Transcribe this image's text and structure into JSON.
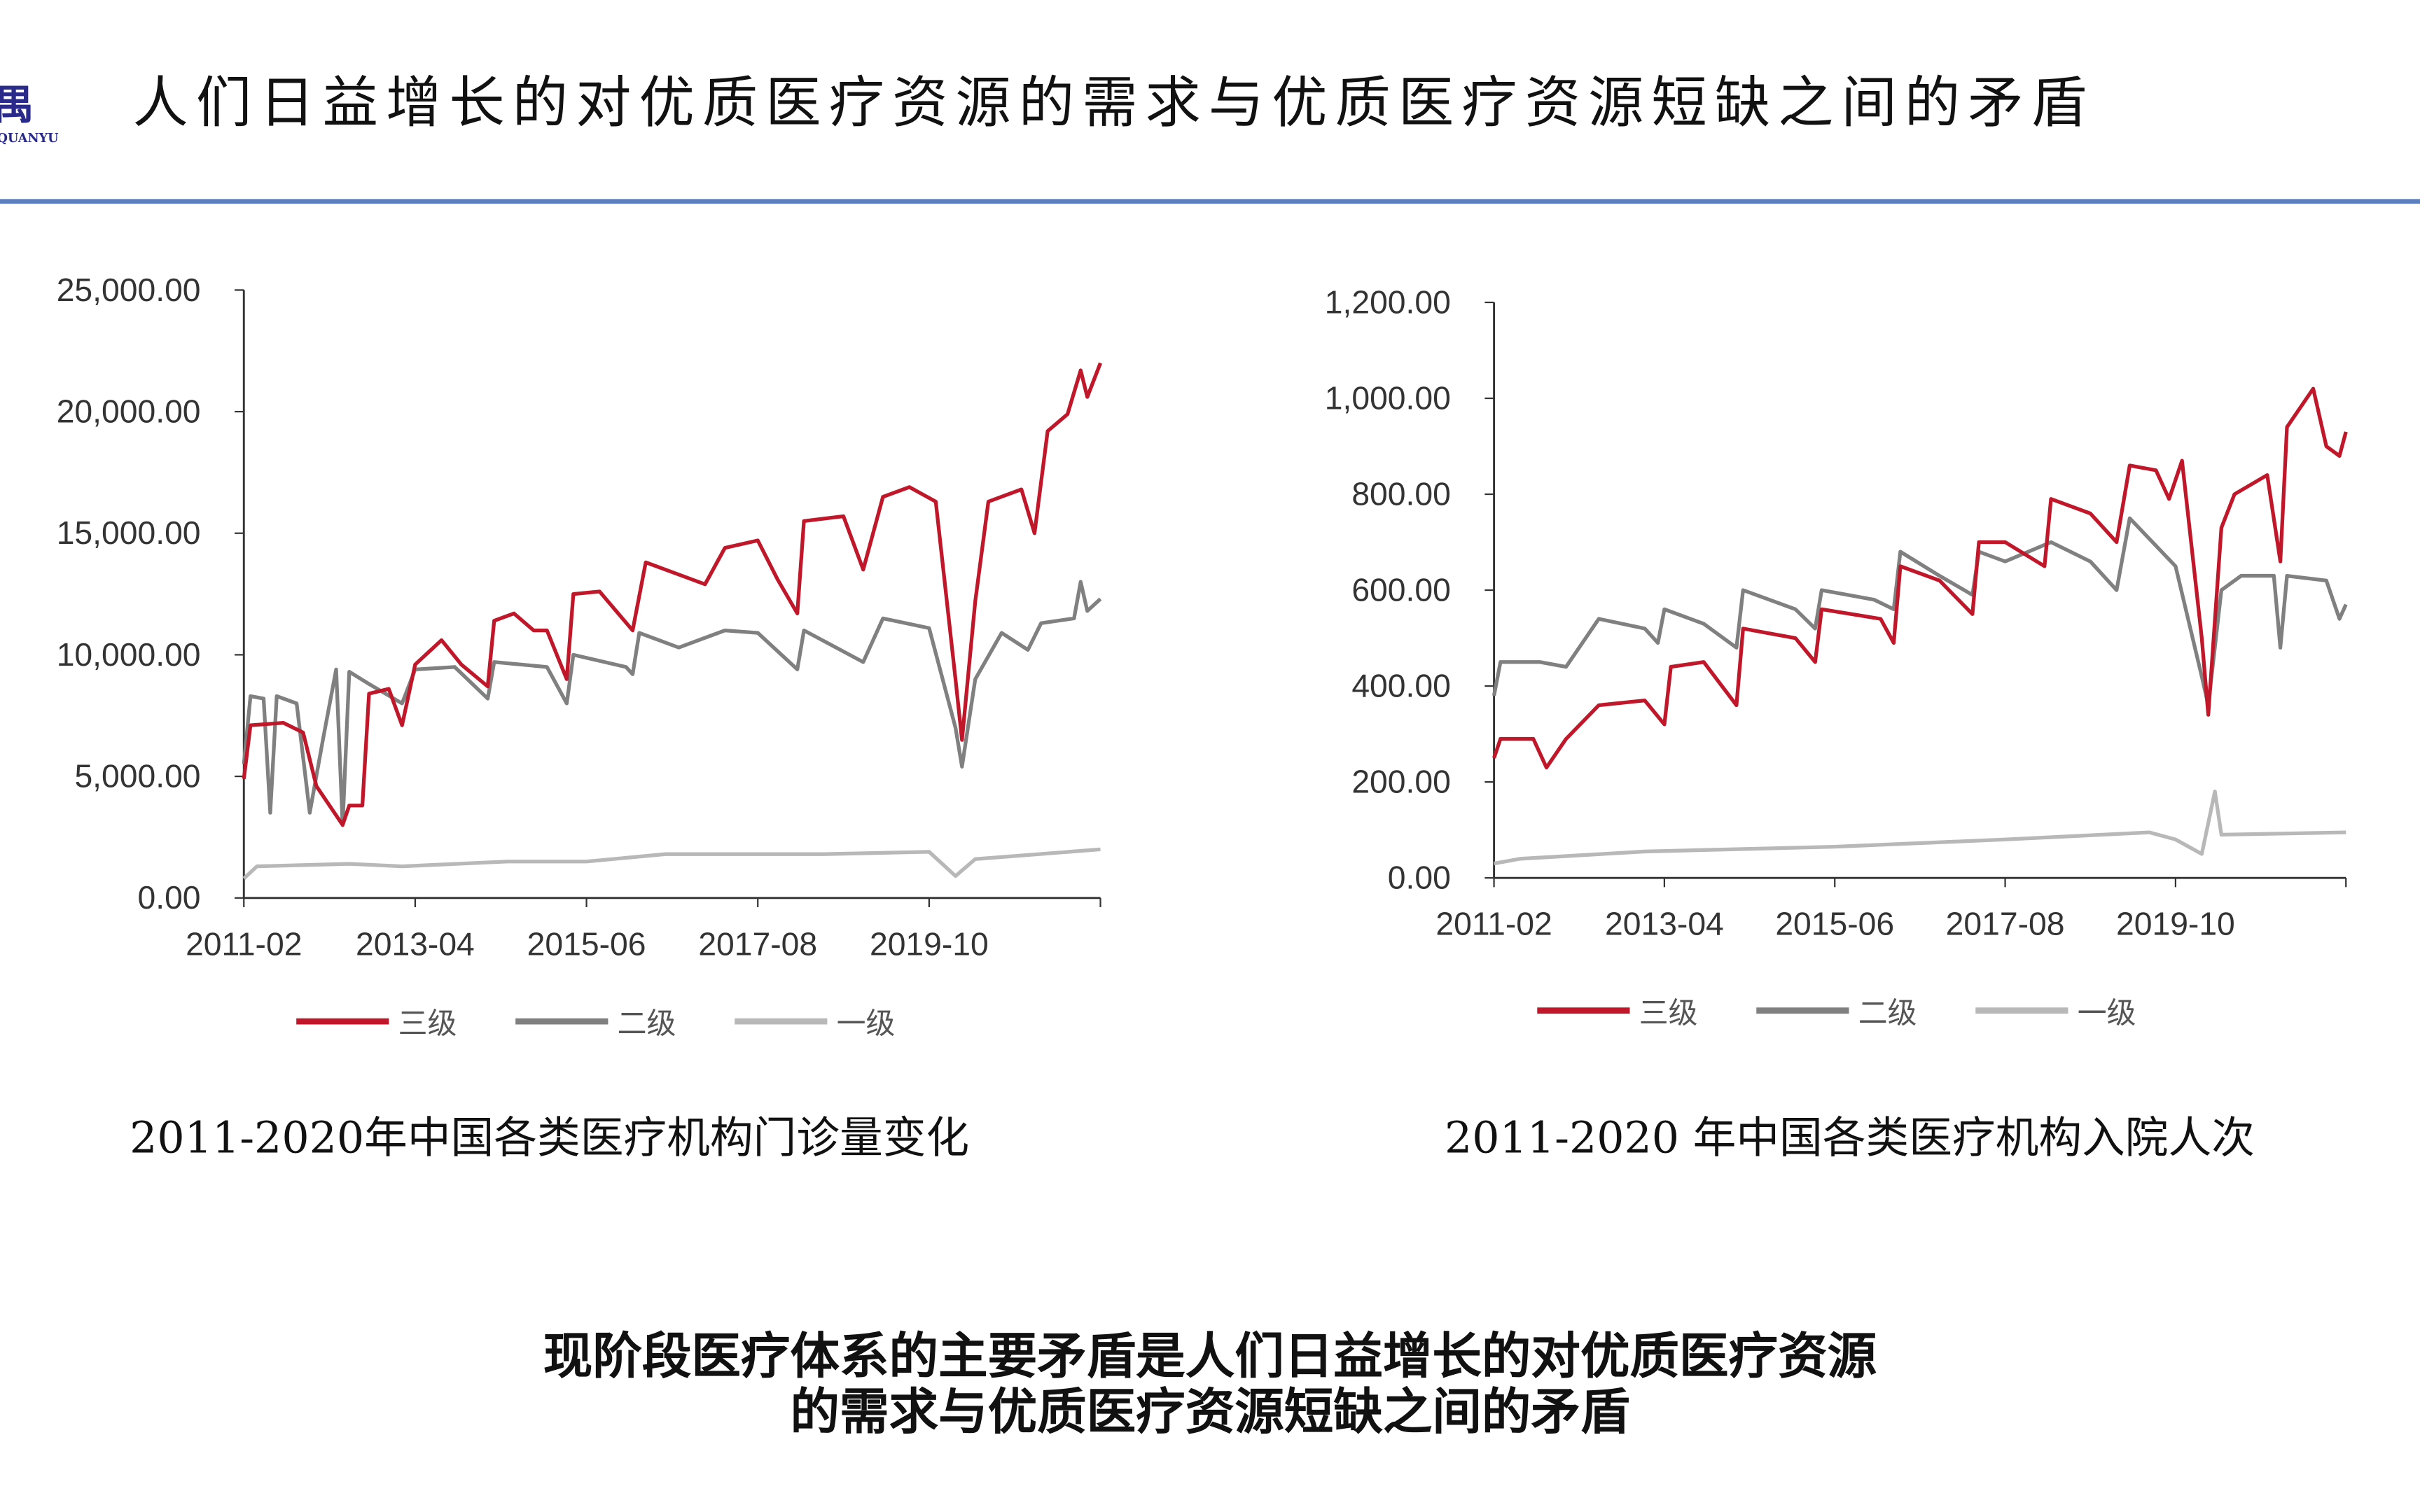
{
  "header": {
    "logo_text": "禺",
    "logo_sub": "QUANYU",
    "title": "人们日益增长的对优质医疗资源的需求与优质医疗资源短缺之间的矛盾",
    "rule_color": "#5b7fc0"
  },
  "captions": {
    "left": "2011-2020年中国各类医疗机构门诊量变化",
    "right": "2011-2020 年中国各类医疗机构入院人次"
  },
  "subtitle": {
    "line1": "现阶段医疗体系的主要矛盾是人们日益增长的对优质医疗资源",
    "line2": "的需求与优质医疗资源短缺之间的矛盾"
  },
  "chart_data": [
    {
      "type": "line",
      "xlim": [
        "2011-02",
        "2021-12"
      ],
      "ylim": [
        0,
        25000
      ],
      "xticks": [
        "2011-02",
        "2013-04",
        "2015-06",
        "2017-08",
        "2019-10"
      ],
      "yticks": [
        "0.00",
        "5,000.00",
        "10,000.00",
        "15,000.00",
        "20,000.00",
        "25,000.00"
      ],
      "legend": "bottom",
      "series": [
        {
          "name": "三级",
          "color": "#c0182a",
          "points": [
            [
              "2011-02",
              4900
            ],
            [
              "2011-03",
              7100
            ],
            [
              "2011-08",
              7200
            ],
            [
              "2011-11",
              6800
            ],
            [
              "2012-01",
              4600
            ],
            [
              "2012-05",
              3000
            ],
            [
              "2012-06",
              3800
            ],
            [
              "2012-08",
              3800
            ],
            [
              "2012-09",
              8400
            ],
            [
              "2012-12",
              8600
            ],
            [
              "2013-02",
              7100
            ],
            [
              "2013-04",
              9600
            ],
            [
              "2013-08",
              10600
            ],
            [
              "2013-11",
              9600
            ],
            [
              "2014-03",
              8700
            ],
            [
              "2014-04",
              11400
            ],
            [
              "2014-07",
              11700
            ],
            [
              "2014-10",
              11000
            ],
            [
              "2014-12",
              11000
            ],
            [
              "2015-03",
              9000
            ],
            [
              "2015-04",
              12500
            ],
            [
              "2015-08",
              12600
            ],
            [
              "2016-01",
              11000
            ],
            [
              "2016-03",
              13800
            ],
            [
              "2016-08",
              13300
            ],
            [
              "2016-12",
              12900
            ],
            [
              "2017-03",
              14400
            ],
            [
              "2017-08",
              14700
            ],
            [
              "2017-11",
              13100
            ],
            [
              "2018-02",
              11700
            ],
            [
              "2018-03",
              15500
            ],
            [
              "2018-09",
              15700
            ],
            [
              "2018-12",
              13500
            ],
            [
              "2019-03",
              16500
            ],
            [
              "2019-07",
              16900
            ],
            [
              "2019-11",
              16300
            ],
            [
              "2020-02",
              9000
            ],
            [
              "2020-03",
              6500
            ],
            [
              "2020-05",
              12200
            ],
            [
              "2020-07",
              16300
            ],
            [
              "2020-12",
              16800
            ],
            [
              "2021-02",
              15000
            ],
            [
              "2021-04",
              19200
            ],
            [
              "2021-07",
              19900
            ],
            [
              "2021-09",
              21700
            ],
            [
              "2021-10",
              20600
            ],
            [
              "2021-12",
              22000
            ]
          ]
        },
        {
          "name": "二级",
          "color": "#808080",
          "points": [
            [
              "2011-02",
              5500
            ],
            [
              "2011-03",
              8300
            ],
            [
              "2011-05",
              8200
            ],
            [
              "2011-06",
              3500
            ],
            [
              "2011-07",
              8300
            ],
            [
              "2011-10",
              8000
            ],
            [
              "2011-12",
              3500
            ],
            [
              "2012-02",
              6500
            ],
            [
              "2012-04",
              9400
            ],
            [
              "2012-05",
              3000
            ],
            [
              "2012-06",
              9300
            ],
            [
              "2012-09",
              8800
            ],
            [
              "2013-02",
              8000
            ],
            [
              "2013-04",
              9400
            ],
            [
              "2013-10",
              9500
            ],
            [
              "2014-03",
              8200
            ],
            [
              "2014-04",
              9700
            ],
            [
              "2014-12",
              9500
            ],
            [
              "2015-03",
              8000
            ],
            [
              "2015-04",
              10000
            ],
            [
              "2015-12",
              9500
            ],
            [
              "2016-01",
              9200
            ],
            [
              "2016-02",
              10900
            ],
            [
              "2016-08",
              10300
            ],
            [
              "2017-03",
              11000
            ],
            [
              "2017-08",
              10900
            ],
            [
              "2018-02",
              9400
            ],
            [
              "2018-03",
              11000
            ],
            [
              "2018-12",
              9700
            ],
            [
              "2019-03",
              11500
            ],
            [
              "2019-10",
              11100
            ],
            [
              "2020-02",
              7000
            ],
            [
              "2020-03",
              5400
            ],
            [
              "2020-05",
              9000
            ],
            [
              "2020-09",
              10900
            ],
            [
              "2021-01",
              10200
            ],
            [
              "2021-03",
              11300
            ],
            [
              "2021-08",
              11500
            ],
            [
              "2021-09",
              13000
            ],
            [
              "2021-10",
              11800
            ],
            [
              "2021-12",
              12300
            ]
          ]
        },
        {
          "name": "一级",
          "color": "#b8b8b8",
          "points": [
            [
              "2011-02",
              800
            ],
            [
              "2011-04",
              1300
            ],
            [
              "2012-06",
              1400
            ],
            [
              "2013-02",
              1300
            ],
            [
              "2014-06",
              1500
            ],
            [
              "2015-06",
              1500
            ],
            [
              "2016-06",
              1800
            ],
            [
              "2017-08",
              1800
            ],
            [
              "2018-06",
              1800
            ],
            [
              "2019-10",
              1900
            ],
            [
              "2020-02",
              900
            ],
            [
              "2020-05",
              1600
            ],
            [
              "2021-12",
              2000
            ]
          ]
        }
      ]
    },
    {
      "type": "line",
      "xlim": [
        "2011-02",
        "2021-12"
      ],
      "ylim": [
        0,
        1200
      ],
      "xticks": [
        "2011-02",
        "2013-04",
        "2015-06",
        "2017-08",
        "2019-10"
      ],
      "yticks": [
        "0.00",
        "200.00",
        "400.00",
        "600.00",
        "800.00",
        "1,000.00",
        "1,200.00"
      ],
      "legend": "bottom",
      "series": [
        {
          "name": "三级",
          "color": "#c0182a",
          "points": [
            [
              "2011-02",
              250
            ],
            [
              "2011-03",
              290
            ],
            [
              "2011-08",
              290
            ],
            [
              "2011-10",
              230
            ],
            [
              "2012-01",
              290
            ],
            [
              "2012-06",
              360
            ],
            [
              "2013-01",
              370
            ],
            [
              "2013-04",
              320
            ],
            [
              "2013-05",
              440
            ],
            [
              "2013-10",
              450
            ],
            [
              "2014-03",
              360
            ],
            [
              "2014-04",
              520
            ],
            [
              "2014-12",
              500
            ],
            [
              "2015-03",
              450
            ],
            [
              "2015-04",
              560
            ],
            [
              "2016-01",
              540
            ],
            [
              "2016-03",
              490
            ],
            [
              "2016-04",
              650
            ],
            [
              "2016-10",
              620
            ],
            [
              "2017-03",
              550
            ],
            [
              "2017-04",
              700
            ],
            [
              "2017-08",
              700
            ],
            [
              "2018-02",
              650
            ],
            [
              "2018-03",
              790
            ],
            [
              "2018-09",
              760
            ],
            [
              "2019-01",
              700
            ],
            [
              "2019-03",
              860
            ],
            [
              "2019-07",
              850
            ],
            [
              "2019-09",
              790
            ],
            [
              "2019-11",
              870
            ],
            [
              "2020-02",
              500
            ],
            [
              "2020-03",
              340
            ],
            [
              "2020-05",
              730
            ],
            [
              "2020-07",
              800
            ],
            [
              "2020-12",
              840
            ],
            [
              "2021-02",
              660
            ],
            [
              "2021-03",
              940
            ],
            [
              "2021-07",
              1020
            ],
            [
              "2021-09",
              900
            ],
            [
              "2021-11",
              880
            ],
            [
              "2021-12",
              930
            ]
          ]
        },
        {
          "name": "二级",
          "color": "#808080",
          "points": [
            [
              "2011-02",
              380
            ],
            [
              "2011-03",
              450
            ],
            [
              "2011-09",
              450
            ],
            [
              "2012-01",
              440
            ],
            [
              "2012-06",
              540
            ],
            [
              "2013-01",
              520
            ],
            [
              "2013-03",
              490
            ],
            [
              "2013-04",
              560
            ],
            [
              "2013-10",
              530
            ],
            [
              "2014-03",
              480
            ],
            [
              "2014-04",
              600
            ],
            [
              "2014-12",
              560
            ],
            [
              "2015-03",
              520
            ],
            [
              "2015-04",
              600
            ],
            [
              "2015-12",
              580
            ],
            [
              "2016-03",
              560
            ],
            [
              "2016-04",
              680
            ],
            [
              "2016-10",
              630
            ],
            [
              "2017-03",
              590
            ],
            [
              "2017-04",
              680
            ],
            [
              "2017-08",
              660
            ],
            [
              "2018-03",
              700
            ],
            [
              "2018-09",
              660
            ],
            [
              "2019-01",
              600
            ],
            [
              "2019-03",
              750
            ],
            [
              "2019-10",
              650
            ],
            [
              "2020-02",
              420
            ],
            [
              "2020-03",
              360
            ],
            [
              "2020-05",
              600
            ],
            [
              "2020-08",
              630
            ],
            [
              "2021-01",
              630
            ],
            [
              "2021-02",
              480
            ],
            [
              "2021-03",
              630
            ],
            [
              "2021-09",
              620
            ],
            [
              "2021-11",
              540
            ],
            [
              "2021-12",
              570
            ]
          ]
        },
        {
          "name": "一级",
          "color": "#b8b8b8",
          "points": [
            [
              "2011-02",
              30
            ],
            [
              "2011-06",
              40
            ],
            [
              "2013-01",
              55
            ],
            [
              "2015-06",
              65
            ],
            [
              "2017-08",
              80
            ],
            [
              "2019-06",
              95
            ],
            [
              "2019-10",
              80
            ],
            [
              "2020-02",
              50
            ],
            [
              "2020-04",
              180
            ],
            [
              "2020-05",
              90
            ],
            [
              "2021-12",
              95
            ]
          ]
        }
      ]
    }
  ]
}
